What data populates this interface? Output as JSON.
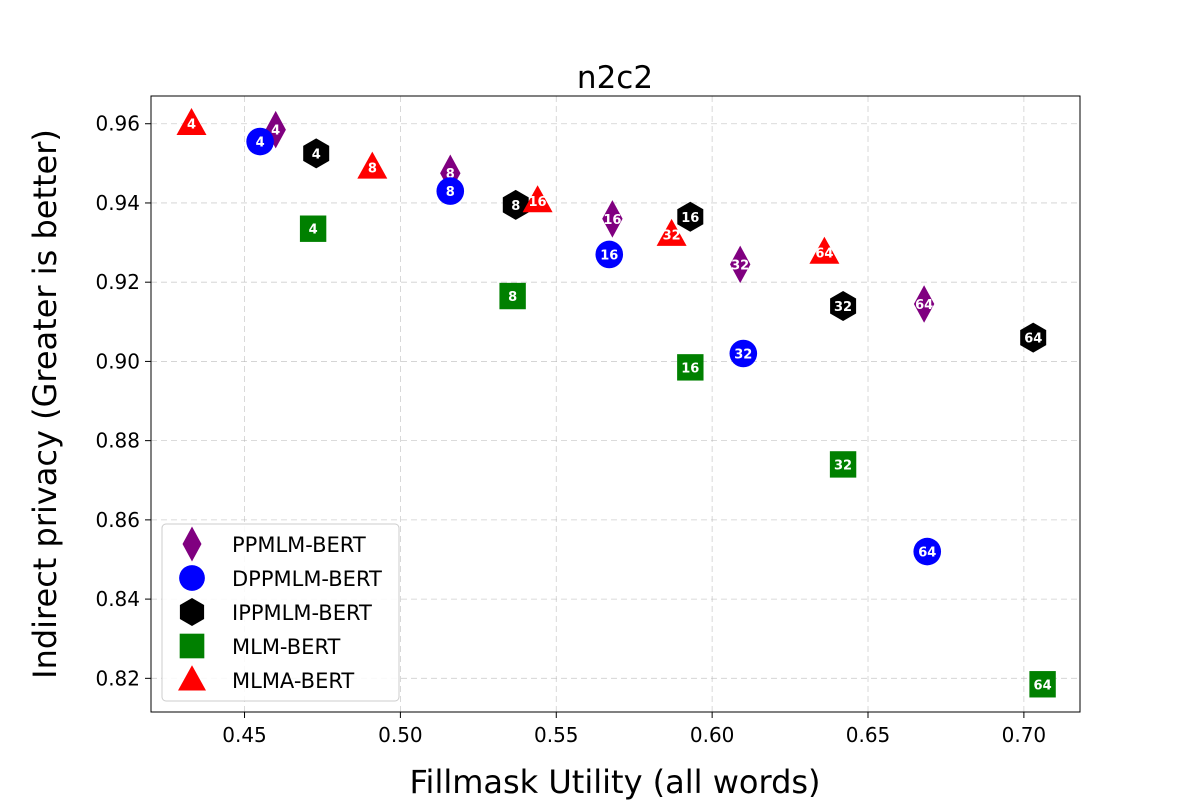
{
  "chart_data": {
    "type": "scatter",
    "title": "n2c2",
    "xlabel": "Fillmask Utility (all words)",
    "ylabel": "Indirect privacy (Greater is better)",
    "xlim": [
      0.42,
      0.718
    ],
    "ylim": [
      0.8115,
      0.967
    ],
    "xticks": [
      0.45,
      0.5,
      0.55,
      0.6,
      0.65,
      0.7
    ],
    "xtick_labels": [
      "0.45",
      "0.50",
      "0.55",
      "0.60",
      "0.65",
      "0.70"
    ],
    "yticks": [
      0.82,
      0.84,
      0.86,
      0.88,
      0.9,
      0.92,
      0.94,
      0.96
    ],
    "ytick_labels": [
      "0.82",
      "0.84",
      "0.86",
      "0.88",
      "0.90",
      "0.92",
      "0.94",
      "0.96"
    ],
    "grid": true,
    "legend_position": "lower-left",
    "series": [
      {
        "name": "PPMLM-BERT",
        "marker": "diamond",
        "color": "#800080",
        "points": [
          {
            "x": 0.46,
            "y": 0.9585,
            "label": "4"
          },
          {
            "x": 0.516,
            "y": 0.9475,
            "label": "8"
          },
          {
            "x": 0.568,
            "y": 0.936,
            "label": "16"
          },
          {
            "x": 0.609,
            "y": 0.9245,
            "label": "32"
          },
          {
            "x": 0.668,
            "y": 0.9145,
            "label": "64"
          }
        ]
      },
      {
        "name": "DPPMLM-BERT",
        "marker": "circle",
        "color": "#0000ff",
        "points": [
          {
            "x": 0.455,
            "y": 0.9555,
            "label": "4"
          },
          {
            "x": 0.516,
            "y": 0.943,
            "label": "8"
          },
          {
            "x": 0.567,
            "y": 0.927,
            "label": "16"
          },
          {
            "x": 0.61,
            "y": 0.902,
            "label": "32"
          },
          {
            "x": 0.669,
            "y": 0.852,
            "label": "64"
          }
        ]
      },
      {
        "name": "IPPMLM-BERT",
        "marker": "hexagon",
        "color": "#000000",
        "points": [
          {
            "x": 0.473,
            "y": 0.9525,
            "label": "4"
          },
          {
            "x": 0.537,
            "y": 0.9395,
            "label": "8"
          },
          {
            "x": 0.593,
            "y": 0.9365,
            "label": "16"
          },
          {
            "x": 0.642,
            "y": 0.914,
            "label": "32"
          },
          {
            "x": 0.703,
            "y": 0.906,
            "label": "64"
          }
        ]
      },
      {
        "name": "MLM-BERT",
        "marker": "square",
        "color": "#008000",
        "points": [
          {
            "x": 0.472,
            "y": 0.9335,
            "label": "4"
          },
          {
            "x": 0.536,
            "y": 0.9165,
            "label": "8"
          },
          {
            "x": 0.593,
            "y": 0.8985,
            "label": "16"
          },
          {
            "x": 0.642,
            "y": 0.874,
            "label": "32"
          },
          {
            "x": 0.706,
            "y": 0.8185,
            "label": "64"
          }
        ]
      },
      {
        "name": "MLMA-BERT",
        "marker": "triangle",
        "color": "#ff0000",
        "points": [
          {
            "x": 0.433,
            "y": 0.96,
            "label": "4"
          },
          {
            "x": 0.491,
            "y": 0.949,
            "label": "8"
          },
          {
            "x": 0.544,
            "y": 0.9405,
            "label": "16"
          },
          {
            "x": 0.587,
            "y": 0.932,
            "label": "32"
          },
          {
            "x": 0.636,
            "y": 0.9275,
            "label": "64"
          }
        ]
      }
    ]
  }
}
